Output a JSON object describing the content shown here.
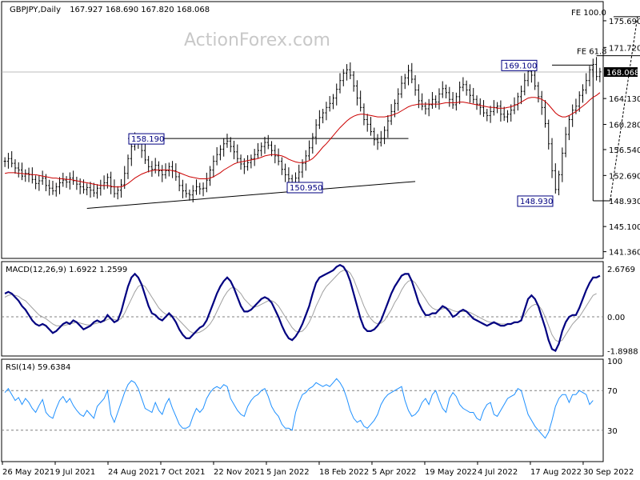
{
  "chart_data": [
    {
      "type": "candlestick",
      "title": "GBPJPY,Daily",
      "ohlc_label": "167.927 168.690 167.820 168.068",
      "watermark": "ActionForex.com",
      "y_ticks": [
        "175.690",
        "171.720",
        "168.068",
        "164.130",
        "160.280",
        "156.540",
        "152.690",
        "148.930",
        "145.100",
        "141.360"
      ],
      "y_tick_values": [
        175.69,
        171.72,
        168.068,
        164.13,
        160.28,
        156.54,
        152.69,
        148.93,
        145.1,
        141.36
      ],
      "current_price": "168.068",
      "ylim": [
        140.6,
        178.3
      ],
      "x_labels": [
        "26 May 2021",
        "9 Jul 2021",
        "24 Aug 2021",
        "7 Oct 2021",
        "22 Nov 2021",
        "5 Jan 2022",
        "18 Feb 2022",
        "5 Apr 2022",
        "19 May 2022",
        "4 Jul 2022",
        "17 Aug 2022",
        "30 Sep 2022"
      ],
      "annotations": [
        {
          "text": "158.190",
          "value": 158.19
        },
        {
          "text": "150.950",
          "value": 150.95
        },
        {
          "text": "169.100",
          "value": 169.1
        },
        {
          "text": "148.930",
          "value": 148.93
        },
        {
          "text": "FE 100.0",
          "value": 176.3
        },
        {
          "text": "FE 61.8",
          "value": 170.5
        }
      ],
      "price_series": [
        154.8,
        155.2,
        154.5,
        153.8,
        153.5,
        152.6,
        153.0,
        152.8,
        152.1,
        151.5,
        151.9,
        152.3,
        151.2,
        150.8,
        150.4,
        151.0,
        151.6,
        152.0,
        151.7,
        152.3,
        151.9,
        151.4,
        151.0,
        150.6,
        150.9,
        150.5,
        150.1,
        150.8,
        151.2,
        151.6,
        152.4,
        151.0,
        150.0,
        150.5,
        151.3,
        153.0,
        155.2,
        157.0,
        158.0,
        157.5,
        156.4,
        155.0,
        154.0,
        153.6,
        154.2,
        153.4,
        152.8,
        153.4,
        154.0,
        153.4,
        152.5,
        151.2,
        150.4,
        150.0,
        149.8,
        150.4,
        151.0,
        150.7,
        150.8,
        152.0,
        153.5,
        154.8,
        155.8,
        156.6,
        157.4,
        157.8,
        157.0,
        156.2,
        155.2,
        154.4,
        154.0,
        154.6,
        155.2,
        155.8,
        156.4,
        157.0,
        157.6,
        157.2,
        156.4,
        155.6,
        154.8,
        153.6,
        152.8,
        152.2,
        151.6,
        152.3,
        153.2,
        154.5,
        155.6,
        156.8,
        158.4,
        160.2,
        161.3,
        162.0,
        162.8,
        163.4,
        164.2,
        165.5,
        166.8,
        167.9,
        168.4,
        167.6,
        166.0,
        164.2,
        162.8,
        161.0,
        160.3,
        159.2,
        158.0,
        157.6,
        158.2,
        159.4,
        160.8,
        162.2,
        163.4,
        164.8,
        166.4,
        167.2,
        168.3,
        167.0,
        165.4,
        163.8,
        163.0,
        162.6,
        163.2,
        164.0,
        163.6,
        164.8,
        165.6,
        165.0,
        164.0,
        163.2,
        164.4,
        165.8,
        166.2,
        165.4,
        164.6,
        164.0,
        163.3,
        162.8,
        162.0,
        161.6,
        162.2,
        162.8,
        163.0,
        161.8,
        161.4,
        161.8,
        162.4,
        163.2,
        164.4,
        165.2,
        166.8,
        168.2,
        167.6,
        166.0,
        164.4,
        162.8,
        160.4,
        157.4,
        153.4,
        150.6,
        152.8,
        156.0,
        158.8,
        161.0,
        162.4,
        163.0,
        164.6,
        165.4,
        166.8,
        168.4,
        169.2,
        167.4,
        168.1
      ],
      "ma_series": [
        153.0,
        153.1,
        153.1,
        153.1,
        153.0,
        153.0,
        152.9,
        152.9,
        152.8,
        152.8,
        152.7,
        152.6,
        152.5,
        152.4,
        152.3,
        152.3,
        152.2,
        152.2,
        152.1,
        152.1,
        152.0,
        151.9,
        151.8,
        151.7,
        151.6,
        151.5,
        151.4,
        151.3,
        151.2,
        151.2,
        151.2,
        151.1,
        151.0,
        151.0,
        151.0,
        151.2,
        151.5,
        151.9,
        152.3,
        152.6,
        152.9,
        153.1,
        153.3,
        153.4,
        153.5,
        153.5,
        153.5,
        153.5,
        153.5,
        153.4,
        153.3,
        153.1,
        152.9,
        152.7,
        152.5,
        152.4,
        152.3,
        152.2,
        152.2,
        152.2,
        152.3,
        152.5,
        152.8,
        153.1,
        153.5,
        153.8,
        154.1,
        154.4,
        154.6,
        154.7,
        154.8,
        154.9,
        155.0,
        155.1,
        155.2,
        155.4,
        155.6,
        155.7,
        155.8,
        155.8,
        155.7,
        155.6,
        155.4,
        155.1,
        154.9,
        154.7,
        154.6,
        154.6,
        154.7,
        154.9,
        155.2,
        155.7,
        156.3,
        156.9,
        157.4,
        158.0,
        158.6,
        159.2,
        159.8,
        160.3,
        160.8,
        161.2,
        161.5,
        161.7,
        161.8,
        161.8,
        161.7,
        161.6,
        161.5,
        161.4,
        161.4,
        161.4,
        161.5,
        161.6,
        161.8,
        162.0,
        162.3,
        162.6,
        162.9,
        163.1,
        163.2,
        163.3,
        163.3,
        163.3,
        163.3,
        163.3,
        163.3,
        163.3,
        163.4,
        163.5,
        163.5,
        163.5,
        163.5,
        163.6,
        163.6,
        163.5,
        163.4,
        163.3,
        163.2,
        163.1,
        163.0,
        162.9,
        162.8,
        162.8,
        162.7,
        162.7,
        162.7,
        162.8,
        162.9,
        163.1,
        163.3,
        163.6,
        163.9,
        164.2,
        164.3,
        164.3,
        164.2,
        164.0,
        163.7,
        163.2,
        162.6,
        162.0,
        161.6,
        161.4,
        161.4,
        161.6,
        161.9,
        162.2,
        162.6,
        163.0,
        163.4,
        163.9,
        164.3,
        164.6,
        165.0
      ]
    },
    {
      "type": "line",
      "title": "MACD(12,26,9) 1.6922 1.2599",
      "y_ticks": [
        "2.6769",
        "0.00",
        "-1.8988"
      ],
      "y_tick_values": [
        2.6769,
        0.0,
        -1.8988
      ],
      "ylim": [
        -2.1,
        3.0
      ],
      "series": [
        {
          "values": [
            1.3,
            1.4,
            1.3,
            1.1,
            0.9,
            0.6,
            0.4,
            0.1,
            -0.2,
            -0.4,
            -0.5,
            -0.4,
            -0.5,
            -0.7,
            -0.9,
            -0.8,
            -0.6,
            -0.4,
            -0.3,
            -0.4,
            -0.2,
            -0.3,
            -0.5,
            -0.7,
            -0.6,
            -0.5,
            -0.3,
            -0.2,
            -0.3,
            -0.2,
            0.1,
            -0.1,
            -0.3,
            -0.2,
            0.3,
            1.0,
            1.7,
            2.2,
            2.4,
            2.2,
            1.8,
            1.2,
            0.6,
            0.2,
            0.1,
            -0.1,
            -0.2,
            0.0,
            0.2,
            0.0,
            -0.3,
            -0.7,
            -1.0,
            -1.2,
            -1.2,
            -1.0,
            -0.8,
            -0.6,
            -0.5,
            -0.2,
            0.3,
            0.8,
            1.3,
            1.7,
            2.0,
            2.2,
            2.0,
            1.6,
            1.1,
            0.6,
            0.3,
            0.3,
            0.4,
            0.6,
            0.8,
            1.0,
            1.1,
            1.0,
            0.8,
            0.4,
            0.0,
            -0.5,
            -0.9,
            -1.2,
            -1.3,
            -1.1,
            -0.8,
            -0.4,
            0.1,
            0.6,
            1.3,
            1.9,
            2.2,
            2.3,
            2.4,
            2.5,
            2.6,
            2.8,
            2.9,
            2.8,
            2.5,
            2.0,
            1.3,
            0.6,
            -0.1,
            -0.6,
            -0.8,
            -0.8,
            -0.7,
            -0.5,
            -0.2,
            0.3,
            0.8,
            1.3,
            1.7,
            2.0,
            2.3,
            2.4,
            2.4,
            2.0,
            1.4,
            0.8,
            0.4,
            0.1,
            0.1,
            0.2,
            0.2,
            0.4,
            0.6,
            0.5,
            0.3,
            0.0,
            0.1,
            0.3,
            0.4,
            0.3,
            0.1,
            -0.1,
            -0.2,
            -0.3,
            -0.4,
            -0.5,
            -0.4,
            -0.3,
            -0.4,
            -0.5,
            -0.5,
            -0.4,
            -0.4,
            -0.3,
            -0.3,
            -0.2,
            0.4,
            1.0,
            1.2,
            1.0,
            0.6,
            0.0,
            -0.6,
            -1.3,
            -1.8,
            -1.9,
            -1.5,
            -0.8,
            -0.3,
            0.0,
            0.1,
            0.1,
            0.5,
            1.0,
            1.5,
            1.9,
            2.2,
            2.2,
            2.3
          ]
        },
        {
          "values": [
            1.1,
            1.2,
            1.25,
            1.2,
            1.15,
            1.0,
            0.9,
            0.7,
            0.5,
            0.3,
            0.1,
            0.0,
            -0.1,
            -0.25,
            -0.4,
            -0.5,
            -0.5,
            -0.5,
            -0.45,
            -0.4,
            -0.35,
            -0.3,
            -0.35,
            -0.4,
            -0.45,
            -0.45,
            -0.4,
            -0.35,
            -0.3,
            -0.25,
            -0.15,
            -0.1,
            -0.15,
            -0.2,
            -0.1,
            0.2,
            0.6,
            1.0,
            1.4,
            1.7,
            1.8,
            1.7,
            1.4,
            1.1,
            0.8,
            0.5,
            0.3,
            0.15,
            0.1,
            0.05,
            0.0,
            -0.2,
            -0.4,
            -0.6,
            -0.8,
            -0.9,
            -0.9,
            -0.85,
            -0.75,
            -0.6,
            -0.4,
            -0.1,
            0.3,
            0.7,
            1.1,
            1.4,
            1.6,
            1.65,
            1.5,
            1.3,
            1.0,
            0.8,
            0.6,
            0.55,
            0.6,
            0.7,
            0.8,
            0.9,
            0.9,
            0.8,
            0.6,
            0.3,
            0.0,
            -0.3,
            -0.6,
            -0.8,
            -0.85,
            -0.8,
            -0.6,
            -0.3,
            0.1,
            0.6,
            1.0,
            1.4,
            1.7,
            1.9,
            2.1,
            2.3,
            2.5,
            2.6,
            2.6,
            2.45,
            2.1,
            1.6,
            1.1,
            0.6,
            0.2,
            -0.1,
            -0.3,
            -0.4,
            -0.35,
            -0.2,
            0.1,
            0.4,
            0.8,
            1.1,
            1.5,
            1.8,
            2.0,
            2.05,
            1.9,
            1.6,
            1.3,
            1.0,
            0.7,
            0.5,
            0.4,
            0.4,
            0.45,
            0.5,
            0.45,
            0.35,
            0.3,
            0.3,
            0.3,
            0.3,
            0.25,
            0.15,
            0.05,
            -0.05,
            -0.15,
            -0.25,
            -0.3,
            -0.3,
            -0.35,
            -0.4,
            -0.4,
            -0.4,
            -0.4,
            -0.35,
            -0.3,
            -0.15,
            0.1,
            0.4,
            0.6,
            0.7,
            0.65,
            0.4,
            0.0,
            -0.5,
            -1.0,
            -1.3,
            -1.4,
            -1.3,
            -1.0,
            -0.7,
            -0.4,
            -0.2,
            0.0,
            0.3,
            0.6,
            0.9,
            1.2,
            1.3
          ]
        }
      ]
    },
    {
      "type": "line",
      "title": "RSI(14) 59.6384",
      "y_ticks": [
        "100",
        "70",
        "30"
      ],
      "y_tick_values": [
        100,
        70,
        30
      ],
      "ylim": [
        0,
        100
      ],
      "series": [
        {
          "values": [
            68,
            72,
            66,
            60,
            63,
            56,
            62,
            58,
            52,
            48,
            55,
            61,
            48,
            44,
            42,
            52,
            60,
            64,
            58,
            62,
            55,
            50,
            46,
            44,
            50,
            46,
            42,
            54,
            58,
            62,
            70,
            46,
            38,
            48,
            58,
            68,
            76,
            80,
            78,
            72,
            62,
            52,
            50,
            48,
            58,
            50,
            46,
            56,
            62,
            52,
            44,
            36,
            32,
            32,
            34,
            44,
            52,
            48,
            52,
            62,
            68,
            72,
            74,
            72,
            76,
            74,
            62,
            56,
            50,
            46,
            44,
            54,
            60,
            64,
            66,
            70,
            72,
            64,
            54,
            48,
            44,
            36,
            32,
            32,
            30,
            48,
            58,
            66,
            68,
            72,
            74,
            78,
            76,
            74,
            76,
            74,
            78,
            82,
            78,
            72,
            62,
            50,
            42,
            38,
            40,
            34,
            32,
            36,
            40,
            46,
            56,
            62,
            66,
            68,
            70,
            72,
            74,
            60,
            50,
            44,
            46,
            50,
            58,
            62,
            56,
            66,
            70,
            60,
            52,
            48,
            62,
            68,
            64,
            56,
            52,
            50,
            48,
            48,
            42,
            40,
            50,
            56,
            58,
            46,
            44,
            50,
            56,
            62,
            64,
            66,
            72,
            70,
            58,
            46,
            40,
            34,
            30,
            26,
            22,
            28,
            40,
            54,
            62,
            66,
            66,
            58,
            66,
            66,
            70,
            68,
            66,
            56,
            60
          ]
        }
      ]
    }
  ]
}
